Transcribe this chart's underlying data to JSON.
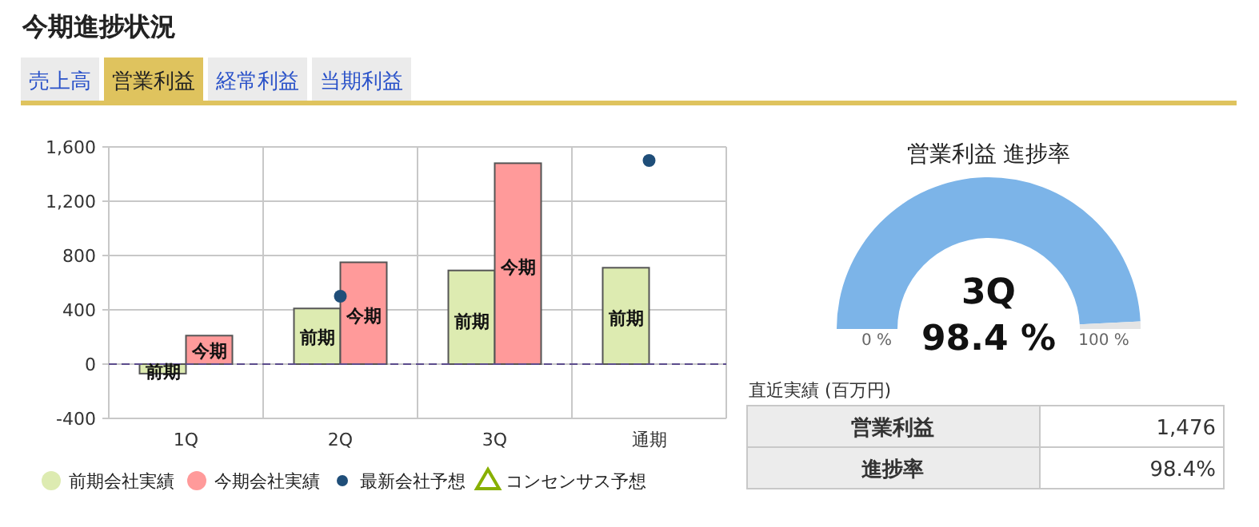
{
  "chart_data": [
    {
      "type": "other",
      "title": "今期進捗状況",
      "annotations": [
        "売上高",
        "営業利益",
        "経常利益",
        "当期利益"
      ]
    },
    {
      "type": "bar",
      "categories": [
        "1Q",
        "2Q",
        "3Q",
        "通期"
      ],
      "series": [
        {
          "name": "前期会社実績",
          "color": "#ddebb1",
          "values": [
            -70,
            410,
            690,
            710
          ]
        },
        {
          "name": "今期会社実績",
          "color": "#ff9a9a",
          "values": [
            210,
            750,
            1480,
            null
          ]
        },
        {
          "name": "最新会社予想",
          "type": "scatter",
          "marker": "circle",
          "color": "#1f4e79",
          "values": [
            null,
            500,
            null,
            1500
          ]
        },
        {
          "name": "コンセンサス予想",
          "type": "scatter",
          "marker": "triangle",
          "color": "#88b000",
          "values": [
            null,
            null,
            null,
            null
          ]
        }
      ],
      "ylim": [
        -400,
        1600
      ],
      "yticks": [
        -400,
        0,
        {
          "value": 400,
          "label": "400"
        },
        {
          "value": 800,
          "label": "800"
        },
        {
          "value": 1200,
          "label": "1,200"
        },
        {
          "value": 1600,
          "label": "1,600"
        }
      ],
      "grid": true,
      "legend": "bottom",
      "ref_lines": [
        {
          "axis": "y",
          "value": 0,
          "color": "#5b4b8b",
          "line_style": "dashed"
        }
      ],
      "annotations": [
        {
          "text": "前期",
          "x": "1Q",
          "y": -50
        },
        {
          "text": "今期",
          "x": "1Q",
          "y": 100
        },
        {
          "text": "前期",
          "x": "2Q",
          "y": 200
        },
        {
          "text": "今期",
          "x": "2Q",
          "y": 360
        },
        {
          "text": "前期",
          "x": "3Q",
          "y": 320
        },
        {
          "text": "今期",
          "x": "3Q",
          "y": 720
        },
        {
          "text": "前期",
          "x": "通期",
          "y": 340
        }
      ]
    },
    {
      "type": "donut",
      "title": "営業利益 進捗率",
      "categories": [
        null,
        null
      ],
      "values": [
        98.4,
        1.6
      ],
      "colors": [
        "#7cb4e8",
        "#e4e4e4"
      ],
      "annotations": [
        "3Q",
        "98.4 %",
        "0 %",
        "100 %"
      ]
    },
    {
      "type": "other",
      "title": "直近実績 (百万円)",
      "annotations": [
        "営業利益",
        "1,476",
        "進捗率",
        "98.4%"
      ]
    }
  ]
}
